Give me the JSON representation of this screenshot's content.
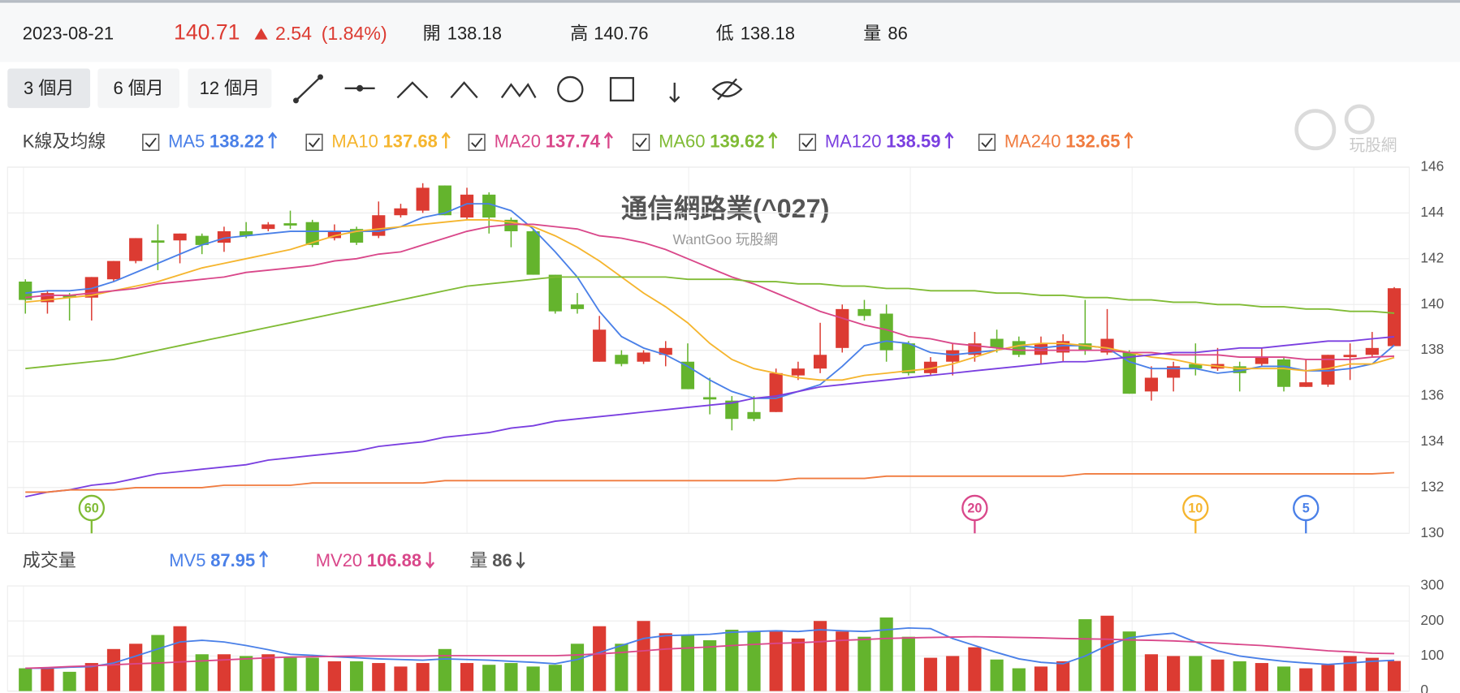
{
  "header": {
    "date": "2023-08-21",
    "change": 2.54,
    "change_pct": "(1.84%)",
    "open_label": "開",
    "high_label": "高",
    "low_label": "低",
    "vol_label": "量"
  },
  "toolbar": {
    "ranges": [
      "3 個月",
      "6 個月",
      "12 個月"
    ],
    "active": 0
  },
  "logo": "玩股網",
  "chart_data": [
    {
      "type": "candlestick",
      "title": "通信網路業(^027)",
      "subtitle": "WantGoo 玩股網",
      "section_label": "K線及均線",
      "up_color": "#dc3b32",
      "down_color": "#64b42d",
      "open": [
        141.0,
        140.1,
        140.4,
        140.3,
        141.1,
        141.9,
        142.8,
        142.8,
        143.0,
        142.7,
        143.2,
        143.3,
        143.55,
        143.6,
        142.9,
        143.3,
        143.0,
        143.9,
        144.1,
        145.2,
        143.8,
        144.8,
        143.7,
        143.2,
        141.3,
        140.0,
        137.5,
        137.8,
        137.5,
        137.8,
        137.5,
        135.95,
        135.8,
        135.3,
        135.3,
        136.9,
        137.2,
        138.1,
        139.8,
        139.6,
        138.3,
        137.0,
        137.5,
        137.8,
        138.5,
        138.4,
        137.8,
        137.9,
        138.3,
        137.9,
        137.9,
        136.2,
        136.8,
        137.4,
        137.2,
        137.3,
        137.4,
        137.6,
        136.4,
        136.5,
        137.7,
        137.8,
        138.18
      ],
      "high": [
        141.1,
        140.6,
        140.5,
        141.2,
        141.9,
        142.9,
        143.5,
        143.1,
        143.1,
        143.4,
        143.6,
        143.6,
        144.1,
        143.7,
        143.5,
        143.4,
        144.5,
        144.4,
        145.3,
        145.2,
        145.1,
        144.9,
        143.8,
        143.3,
        141.3,
        140.5,
        139.5,
        138.0,
        138.0,
        138.4,
        138.3,
        136.8,
        136.0,
        136.0,
        137.2,
        137.5,
        139.2,
        140.0,
        140.2,
        140.0,
        138.4,
        137.7,
        138.3,
        138.8,
        138.9,
        138.6,
        138.6,
        138.7,
        140.2,
        139.8,
        138.0,
        137.3,
        137.5,
        138.3,
        138.1,
        137.5,
        138.1,
        137.7,
        137.6,
        137.8,
        138.3,
        138.8,
        140.76
      ],
      "low": [
        139.6,
        139.6,
        139.3,
        139.3,
        141.0,
        141.8,
        141.5,
        141.8,
        142.2,
        142.3,
        142.9,
        143.2,
        143.3,
        142.5,
        142.8,
        142.6,
        142.9,
        143.8,
        144.0,
        143.9,
        143.7,
        143.1,
        142.5,
        141.3,
        139.6,
        139.6,
        137.5,
        137.3,
        137.4,
        137.3,
        136.3,
        135.2,
        134.5,
        134.9,
        135.3,
        136.7,
        137.0,
        137.9,
        139.3,
        137.5,
        136.9,
        136.9,
        136.9,
        137.5,
        137.9,
        137.7,
        137.4,
        137.5,
        137.8,
        137.8,
        136.1,
        135.8,
        136.2,
        136.9,
        137.1,
        136.2,
        137.3,
        136.2,
        136.4,
        136.4,
        136.7,
        137.7,
        138.18
      ],
      "close": [
        140.2,
        140.5,
        140.3,
        141.2,
        141.9,
        142.9,
        142.7,
        143.1,
        142.6,
        143.2,
        143.0,
        143.5,
        143.45,
        142.6,
        143.2,
        142.7,
        143.9,
        144.2,
        145.1,
        143.9,
        144.8,
        143.8,
        143.2,
        141.3,
        139.7,
        139.8,
        138.9,
        137.4,
        137.9,
        138.1,
        136.3,
        135.85,
        135.0,
        135.0,
        137.0,
        137.2,
        137.8,
        139.8,
        139.5,
        138.0,
        137.0,
        137.5,
        138.0,
        138.3,
        138.1,
        137.8,
        138.3,
        138.4,
        138.0,
        138.5,
        136.1,
        136.8,
        137.3,
        137.2,
        137.4,
        137.0,
        137.7,
        136.4,
        136.6,
        137.8,
        137.8,
        138.1,
        140.71
      ],
      "ylim": [
        130,
        146
      ],
      "yticks": [
        130,
        132,
        134,
        136,
        138,
        140,
        142,
        144,
        146
      ],
      "grid": true,
      "series": [
        {
          "name": "MA5",
          "color": "#4a80e8",
          "trend": "up",
          "values": [
            140.5,
            140.6,
            140.6,
            140.7,
            141.0,
            141.4,
            141.8,
            142.2,
            142.6,
            142.9,
            143.0,
            143.1,
            143.2,
            143.2,
            143.2,
            143.2,
            143.2,
            143.4,
            143.8,
            144.0,
            144.4,
            144.4,
            144.1,
            143.3,
            142.3,
            141.2,
            139.7,
            138.6,
            138.1,
            137.8,
            137.3,
            136.7,
            136.2,
            135.9,
            135.9,
            136.2,
            136.5,
            137.3,
            138.2,
            138.4,
            138.3,
            137.9,
            137.8,
            137.9,
            138.0,
            138.2,
            138.1,
            138.2,
            138.2,
            138.1,
            137.5,
            137.2,
            137.2,
            137.2,
            137.0,
            137.1,
            137.3,
            137.3,
            137.1,
            137.1,
            137.2,
            137.4,
            138.22
          ]
        },
        {
          "name": "MA10",
          "color": "#f5b52e",
          "trend": "up",
          "values": [
            140.1,
            140.2,
            140.3,
            140.4,
            140.6,
            140.8,
            141.0,
            141.3,
            141.6,
            141.8,
            142.0,
            142.2,
            142.4,
            142.7,
            143.0,
            143.2,
            143.3,
            143.4,
            143.5,
            143.6,
            143.7,
            143.7,
            143.6,
            143.4,
            143.0,
            142.5,
            141.9,
            141.2,
            140.5,
            139.9,
            139.2,
            138.3,
            137.6,
            137.2,
            137.0,
            136.8,
            136.7,
            136.7,
            136.9,
            137.0,
            137.1,
            137.2,
            137.4,
            137.7,
            138.0,
            138.2,
            138.3,
            138.3,
            138.2,
            138.1,
            137.9,
            137.7,
            137.6,
            137.4,
            137.3,
            137.2,
            137.2,
            137.2,
            137.1,
            137.2,
            137.4,
            137.4,
            137.68
          ]
        },
        {
          "name": "MA20",
          "color": "#d9478a",
          "trend": "up",
          "values": [
            140.3,
            140.4,
            140.4,
            140.5,
            140.6,
            140.7,
            140.9,
            141.0,
            141.1,
            141.2,
            141.4,
            141.5,
            141.6,
            141.7,
            141.9,
            142.0,
            142.2,
            142.3,
            142.6,
            142.9,
            143.2,
            143.4,
            143.5,
            143.5,
            143.4,
            143.3,
            143.0,
            142.9,
            142.7,
            142.4,
            142.0,
            141.6,
            141.2,
            140.9,
            140.5,
            140.1,
            139.7,
            139.4,
            139.1,
            138.9,
            138.6,
            138.5,
            138.3,
            138.2,
            138.1,
            138.0,
            138.0,
            138.0,
            138.0,
            138.0,
            137.9,
            137.9,
            137.8,
            137.8,
            137.8,
            137.7,
            137.7,
            137.7,
            137.6,
            137.6,
            137.6,
            137.7,
            137.74
          ]
        },
        {
          "name": "MA60",
          "color": "#80bb35",
          "trend": "up",
          "values": [
            137.2,
            137.3,
            137.4,
            137.5,
            137.6,
            137.8,
            138.0,
            138.2,
            138.4,
            138.6,
            138.8,
            139.0,
            139.2,
            139.4,
            139.6,
            139.8,
            140.0,
            140.2,
            140.4,
            140.6,
            140.8,
            140.9,
            141.0,
            141.1,
            141.2,
            141.2,
            141.2,
            141.2,
            141.2,
            141.2,
            141.1,
            141.1,
            141.1,
            141.0,
            141.0,
            140.9,
            140.9,
            140.8,
            140.8,
            140.7,
            140.7,
            140.6,
            140.6,
            140.6,
            140.5,
            140.5,
            140.4,
            140.4,
            140.3,
            140.3,
            140.2,
            140.2,
            140.1,
            140.1,
            140.0,
            140.0,
            139.9,
            139.9,
            139.8,
            139.8,
            139.7,
            139.7,
            139.62
          ]
        },
        {
          "name": "MA120",
          "color": "#7a3fe0",
          "trend": "up",
          "values": [
            131.6,
            131.8,
            131.9,
            132.1,
            132.2,
            132.4,
            132.6,
            132.7,
            132.8,
            132.9,
            133.0,
            133.2,
            133.3,
            133.4,
            133.5,
            133.6,
            133.8,
            133.9,
            134.0,
            134.2,
            134.3,
            134.4,
            134.6,
            134.7,
            134.9,
            135.0,
            135.1,
            135.2,
            135.3,
            135.4,
            135.5,
            135.6,
            135.7,
            135.9,
            136.0,
            136.2,
            136.4,
            136.5,
            136.6,
            136.7,
            136.8,
            136.9,
            137.0,
            137.1,
            137.2,
            137.3,
            137.4,
            137.5,
            137.5,
            137.6,
            137.7,
            137.8,
            137.9,
            137.9,
            138.0,
            138.1,
            138.1,
            138.2,
            138.3,
            138.4,
            138.4,
            138.5,
            138.59
          ]
        },
        {
          "name": "MA240",
          "color": "#f07b3f",
          "trend": "up",
          "values": [
            131.8,
            131.8,
            131.9,
            131.9,
            131.9,
            132.0,
            132.0,
            132.0,
            132.0,
            132.1,
            132.1,
            132.1,
            132.1,
            132.2,
            132.2,
            132.2,
            132.2,
            132.2,
            132.2,
            132.3,
            132.3,
            132.3,
            132.3,
            132.3,
            132.3,
            132.3,
            132.3,
            132.3,
            132.3,
            132.3,
            132.3,
            132.3,
            132.3,
            132.3,
            132.3,
            132.4,
            132.4,
            132.4,
            132.4,
            132.5,
            132.5,
            132.5,
            132.5,
            132.5,
            132.5,
            132.5,
            132.5,
            132.5,
            132.6,
            132.6,
            132.6,
            132.6,
            132.6,
            132.6,
            132.6,
            132.6,
            132.6,
            132.6,
            132.6,
            132.6,
            132.6,
            132.6,
            132.65
          ]
        }
      ],
      "markers": [
        60,
        20,
        10,
        5
      ]
    },
    {
      "type": "bar",
      "section_label": "成交量",
      "volume_label": "量",
      "volume_trend": "down",
      "values": [
        65,
        65,
        55,
        80,
        120,
        135,
        160,
        185,
        105,
        105,
        100,
        105,
        95,
        95,
        85,
        85,
        80,
        70,
        80,
        120,
        80,
        75,
        80,
        70,
        75,
        135,
        185,
        135,
        200,
        165,
        160,
        145,
        175,
        170,
        170,
        150,
        200,
        170,
        155,
        210,
        155,
        95,
        100,
        125,
        90,
        65,
        70,
        85,
        205,
        215,
        170,
        105,
        100,
        100,
        90,
        85,
        80,
        70,
        65,
        75,
        100,
        95,
        86
      ],
      "ylim": [
        0,
        300
      ],
      "yticks": [
        0,
        100,
        200,
        300
      ],
      "grid": true,
      "series": [
        {
          "name": "MV5",
          "color": "#4a80e8",
          "trend": "up",
          "values": [
            65,
            65,
            68,
            70,
            80,
            100,
            120,
            140,
            145,
            140,
            130,
            118,
            105,
            102,
            98,
            95,
            92,
            90,
            88,
            92,
            90,
            88,
            85,
            82,
            78,
            90,
            110,
            130,
            150,
            158,
            160,
            162,
            168,
            170,
            172,
            170,
            175,
            172,
            170,
            175,
            180,
            178,
            150,
            130,
            110,
            92,
            82,
            78,
            100,
            130,
            152,
            160,
            165,
            140,
            115,
            100,
            92,
            85,
            80,
            76,
            80,
            85,
            87.95
          ]
        },
        {
          "name": "MV20",
          "color": "#d9478a",
          "trend": "down",
          "values": [
            65,
            67,
            70,
            72,
            75,
            78,
            80,
            83,
            86,
            89,
            92,
            95,
            97,
            98,
            99,
            100,
            100,
            100,
            100,
            101,
            101,
            101,
            101,
            101,
            101,
            103,
            106,
            110,
            115,
            120,
            123,
            126,
            130,
            133,
            136,
            138,
            141,
            145,
            147,
            150,
            152,
            153,
            154,
            155,
            154,
            153,
            152,
            150,
            149,
            148,
            146,
            145,
            143,
            140,
            137,
            133,
            130,
            125,
            120,
            115,
            112,
            108,
            106.88
          ]
        }
      ]
    }
  ]
}
